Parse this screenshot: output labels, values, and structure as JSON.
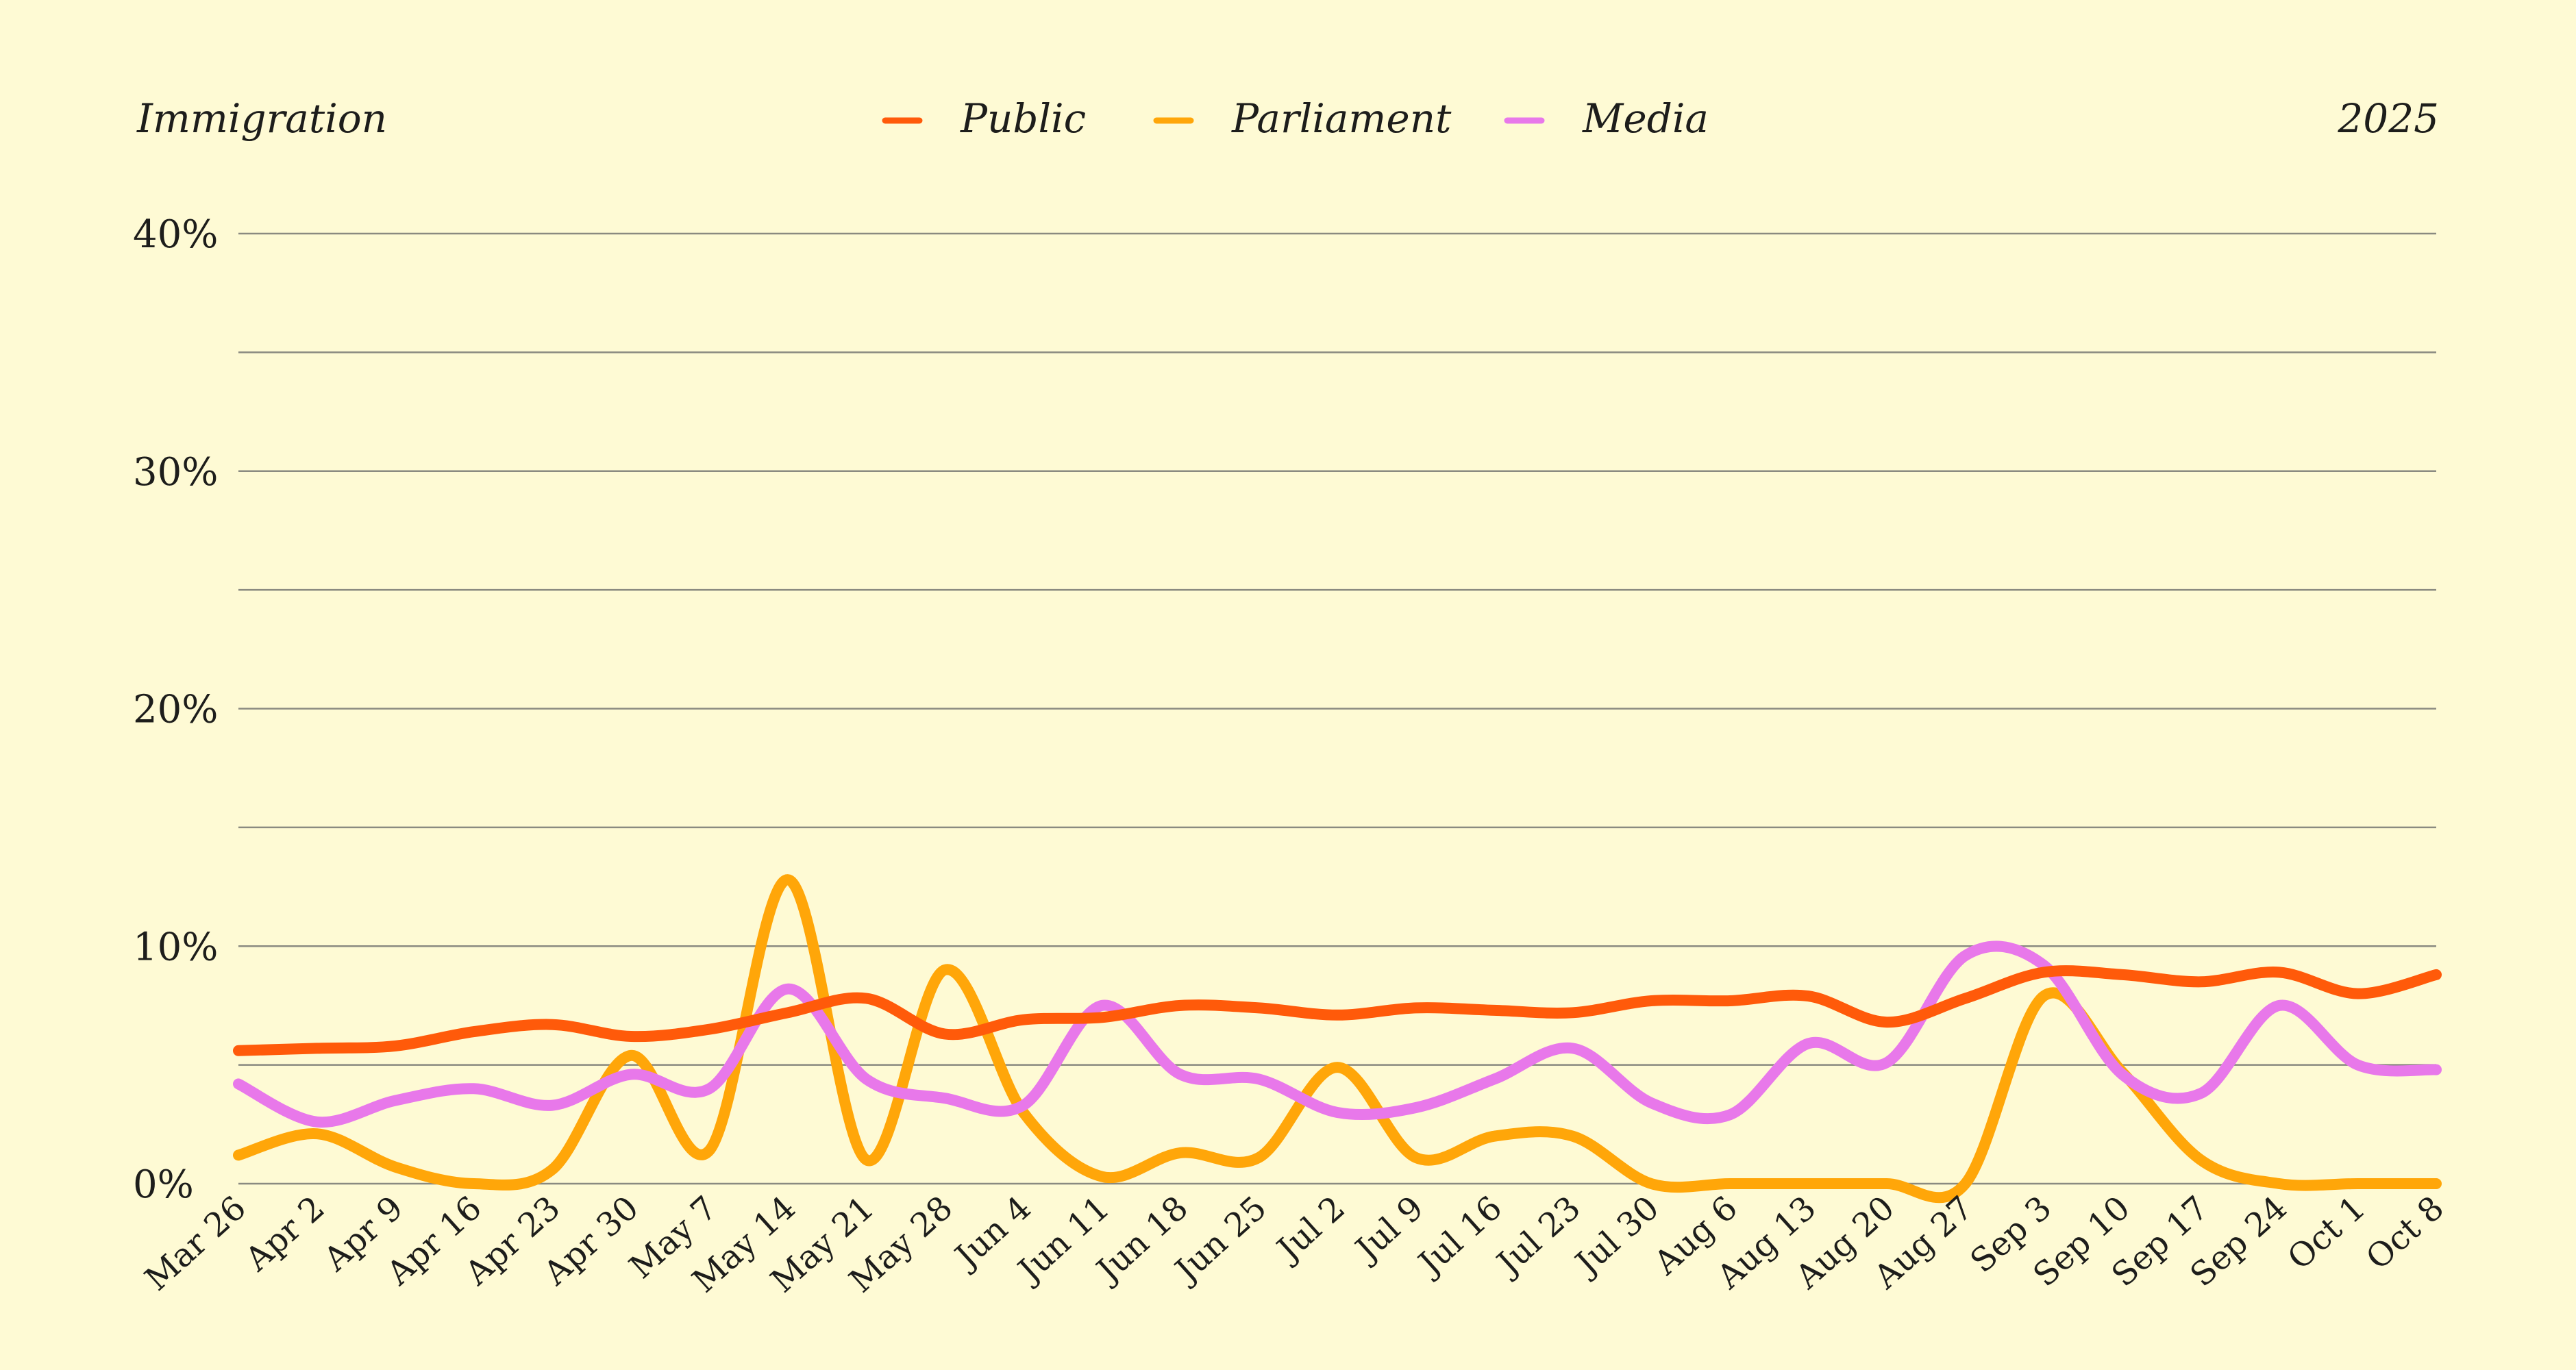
{
  "chart_data": {
    "type": "line",
    "title": "Immigration",
    "year_label": "2025",
    "categories": [
      "Mar 26",
      "Apr 2",
      "Apr 9",
      "Apr 16",
      "Apr 23",
      "Apr 30",
      "May 7",
      "May 14",
      "May 21",
      "May 28",
      "Jun 4",
      "Jun 11",
      "Jun 18",
      "Jun 25",
      "Jul 2",
      "Jul 9",
      "Jul 16",
      "Jul 23",
      "Jul 30",
      "Aug 6",
      "Aug 13",
      "Aug 20",
      "Aug 27",
      "Sep 3",
      "Sep 10",
      "Sep 17",
      "Sep 24",
      "Oct 1",
      "Oct 8"
    ],
    "ylim": [
      0,
      40
    ],
    "yticks": [
      0,
      10,
      20,
      30,
      40
    ],
    "ytick_labels": [
      "0%",
      "10%",
      "20%",
      "30%",
      "40%"
    ],
    "gridlines": [
      0,
      5,
      10,
      15,
      20,
      25,
      30,
      35,
      40
    ],
    "legend_position": "top-center",
    "series": [
      {
        "name": "Public",
        "color": "#ff5a0a",
        "values": [
          5.6,
          5.7,
          5.8,
          6.4,
          6.7,
          6.2,
          6.5,
          7.2,
          7.8,
          6.3,
          6.9,
          7.0,
          7.5,
          7.4,
          7.1,
          7.4,
          7.3,
          7.2,
          7.7,
          7.7,
          7.9,
          6.8,
          7.8,
          8.9,
          8.8,
          8.5,
          8.9,
          8.0,
          8.8
        ]
      },
      {
        "name": "Parliament",
        "color": "#ffa609",
        "values": [
          1.2,
          2.1,
          0.7,
          0.0,
          0.6,
          5.4,
          1.4,
          12.8,
          1.0,
          9.0,
          3.0,
          0.3,
          1.3,
          1.1,
          4.9,
          1.1,
          2.0,
          2.0,
          0.0,
          0.0,
          0.0,
          0.0,
          0.0,
          7.9,
          4.7,
          1.0,
          0.0,
          0.0,
          0.0
        ]
      },
      {
        "name": "Media",
        "color": "#e878ea",
        "values": [
          4.2,
          2.6,
          3.5,
          4.0,
          3.3,
          4.6,
          4.0,
          8.2,
          4.4,
          3.6,
          3.3,
          7.5,
          4.6,
          4.4,
          3.0,
          3.2,
          4.4,
          5.7,
          3.4,
          2.9,
          5.9,
          5.1,
          9.6,
          9.2,
          4.6,
          3.8,
          7.5,
          5.0,
          4.8
        ]
      }
    ]
  }
}
